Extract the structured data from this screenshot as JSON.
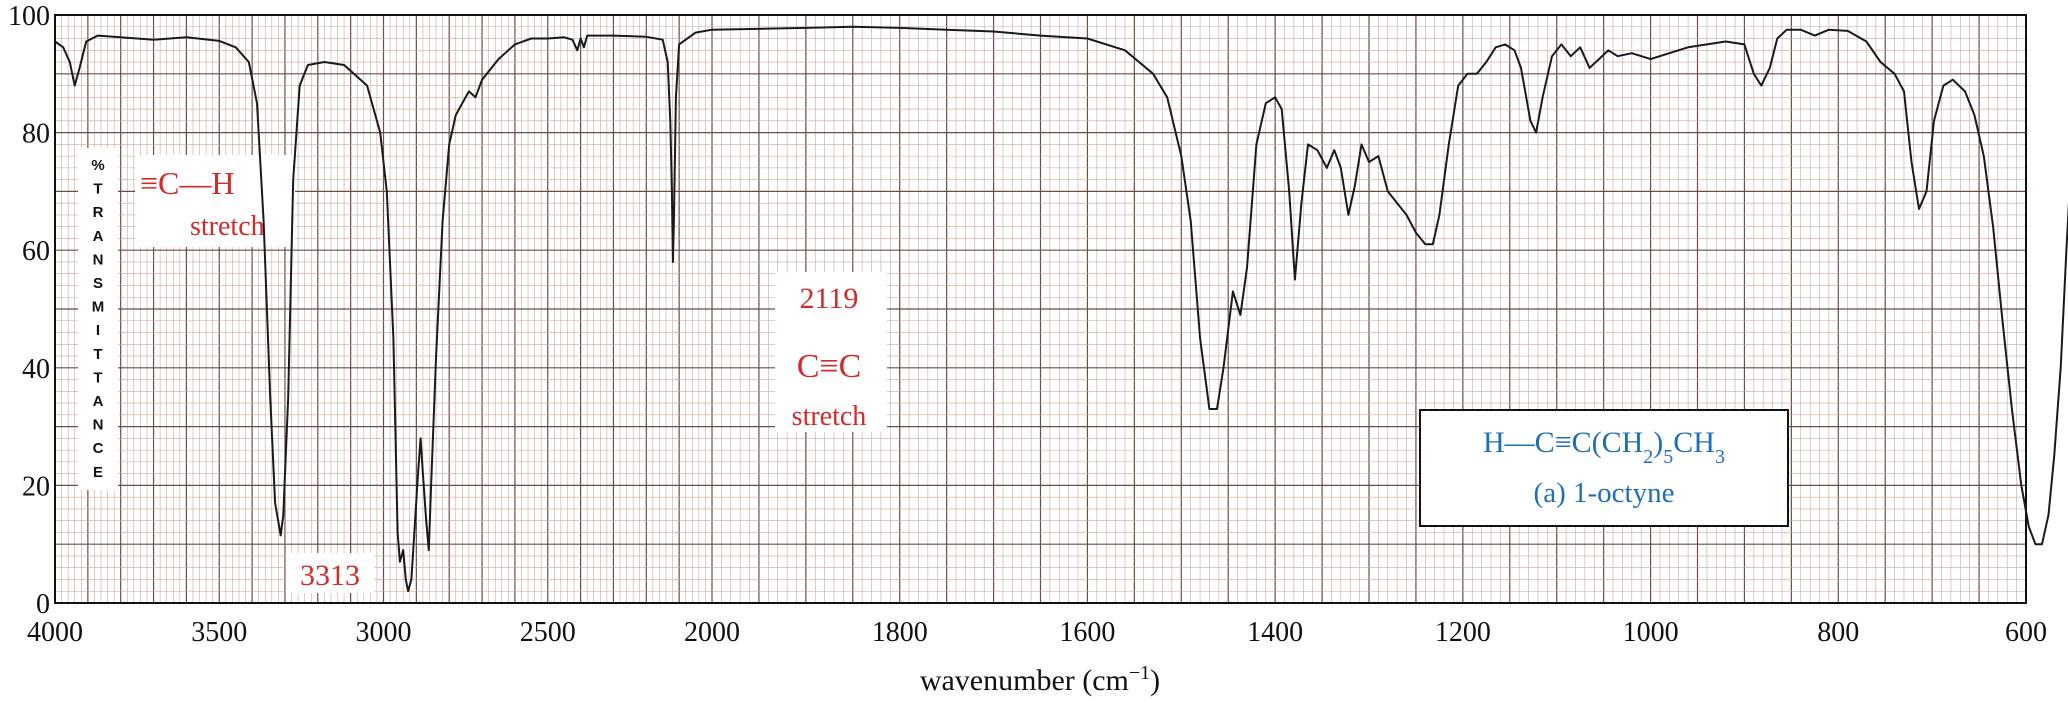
{
  "chart_data": {
    "type": "line",
    "xlabel": "wavenumber (cm",
    "xlabel_sup": "−1",
    "xlabel_close": ")",
    "ylabel_letters": [
      "%",
      "T",
      "R",
      "A",
      "N",
      "S",
      "M",
      "I",
      "T",
      "T",
      "A",
      "N",
      "C",
      "E"
    ],
    "x_ticks": [
      4000,
      3500,
      3000,
      2500,
      2000,
      1800,
      1600,
      1400,
      1200,
      1000,
      800,
      600
    ],
    "y_ticks": [
      0,
      20,
      40,
      60,
      80,
      100
    ],
    "xlim": [
      4000,
      600
    ],
    "ylim": [
      0,
      100
    ],
    "x_scale": "piecewise: 4000–2000 at half the scale of 2000–600",
    "grid": true,
    "colors": {
      "curve": "#1a1a1a",
      "grid_minor": "#c9a99a",
      "grid_major": "#6b4e44",
      "annotation": "#d42a2a",
      "compound": "#1f6fb8"
    },
    "series": [
      {
        "points": [
          [
            4000,
            95.5
          ],
          [
            3975,
            94.5
          ],
          [
            3955,
            92
          ],
          [
            3940,
            88
          ],
          [
            3925,
            91
          ],
          [
            3905,
            95.5
          ],
          [
            3870,
            96.5
          ],
          [
            3800,
            96.2
          ],
          [
            3700,
            95.8
          ],
          [
            3600,
            96.2
          ],
          [
            3500,
            95.6
          ],
          [
            3450,
            94.5
          ],
          [
            3410,
            92
          ],
          [
            3385,
            85
          ],
          [
            3365,
            65
          ],
          [
            3345,
            35
          ],
          [
            3330,
            17
          ],
          [
            3313,
            11.5
          ],
          [
            3305,
            15
          ],
          [
            3290,
            35
          ],
          [
            3275,
            72
          ],
          [
            3255,
            88
          ],
          [
            3230,
            91.5
          ],
          [
            3180,
            92
          ],
          [
            3120,
            91.5
          ],
          [
            3050,
            88
          ],
          [
            3010,
            80
          ],
          [
            2990,
            70
          ],
          [
            2970,
            45
          ],
          [
            2957,
            12
          ],
          [
            2950,
            7
          ],
          [
            2940,
            9
          ],
          [
            2932,
            4
          ],
          [
            2925,
            2
          ],
          [
            2915,
            4
          ],
          [
            2905,
            13
          ],
          [
            2895,
            22
          ],
          [
            2887,
            28
          ],
          [
            2880,
            22
          ],
          [
            2870,
            14
          ],
          [
            2862,
            9
          ],
          [
            2855,
            20
          ],
          [
            2840,
            42
          ],
          [
            2820,
            65
          ],
          [
            2800,
            78
          ],
          [
            2780,
            83
          ],
          [
            2760,
            85
          ],
          [
            2740,
            87
          ],
          [
            2720,
            86
          ],
          [
            2700,
            89
          ],
          [
            2650,
            92.5
          ],
          [
            2600,
            95
          ],
          [
            2550,
            96
          ],
          [
            2500,
            96
          ],
          [
            2450,
            96.2
          ],
          [
            2425,
            95.8
          ],
          [
            2410,
            94
          ],
          [
            2400,
            96
          ],
          [
            2390,
            94.5
          ],
          [
            2380,
            96.5
          ],
          [
            2350,
            96.5
          ],
          [
            2300,
            96.5
          ],
          [
            2200,
            96.3
          ],
          [
            2150,
            95.8
          ],
          [
            2135,
            92
          ],
          [
            2127,
            82
          ],
          [
            2122,
            70
          ],
          [
            2119,
            58
          ],
          [
            2116,
            65
          ],
          [
            2110,
            86
          ],
          [
            2100,
            95
          ],
          [
            2050,
            97
          ],
          [
            2000,
            97.5
          ],
          [
            1900,
            97.8
          ],
          [
            1850,
            98
          ],
          [
            1800,
            97.8
          ],
          [
            1750,
            97.5
          ],
          [
            1700,
            97.2
          ],
          [
            1650,
            96.5
          ],
          [
            1600,
            96
          ],
          [
            1560,
            94
          ],
          [
            1530,
            90
          ],
          [
            1515,
            86
          ],
          [
            1500,
            76
          ],
          [
            1490,
            65
          ],
          [
            1480,
            45
          ],
          [
            1470,
            33
          ],
          [
            1462,
            33
          ],
          [
            1455,
            40
          ],
          [
            1445,
            53
          ],
          [
            1437,
            49
          ],
          [
            1430,
            57
          ],
          [
            1420,
            78
          ],
          [
            1410,
            85
          ],
          [
            1400,
            86
          ],
          [
            1393,
            84
          ],
          [
            1385,
            70
          ],
          [
            1379,
            55
          ],
          [
            1372,
            68
          ],
          [
            1365,
            78
          ],
          [
            1355,
            77
          ],
          [
            1345,
            74
          ],
          [
            1337,
            77
          ],
          [
            1330,
            74
          ],
          [
            1322,
            66
          ],
          [
            1315,
            71
          ],
          [
            1308,
            78
          ],
          [
            1300,
            75
          ],
          [
            1290,
            76
          ],
          [
            1280,
            70
          ],
          [
            1270,
            68
          ],
          [
            1260,
            66
          ],
          [
            1250,
            63
          ],
          [
            1240,
            61
          ],
          [
            1232,
            61
          ],
          [
            1225,
            66
          ],
          [
            1215,
            78
          ],
          [
            1205,
            88
          ],
          [
            1195,
            90
          ],
          [
            1185,
            90
          ],
          [
            1175,
            92
          ],
          [
            1165,
            94.5
          ],
          [
            1155,
            95
          ],
          [
            1145,
            94
          ],
          [
            1138,
            91
          ],
          [
            1128,
            82
          ],
          [
            1122,
            80
          ],
          [
            1115,
            86
          ],
          [
            1105,
            93
          ],
          [
            1095,
            95
          ],
          [
            1085,
            93
          ],
          [
            1075,
            94.5
          ],
          [
            1065,
            91
          ],
          [
            1055,
            92.5
          ],
          [
            1045,
            94
          ],
          [
            1035,
            93
          ],
          [
            1020,
            93.5
          ],
          [
            1000,
            92.5
          ],
          [
            980,
            93.5
          ],
          [
            960,
            94.5
          ],
          [
            940,
            95
          ],
          [
            920,
            95.5
          ],
          [
            900,
            95
          ],
          [
            890,
            90
          ],
          [
            882,
            88
          ],
          [
            873,
            91
          ],
          [
            865,
            96
          ],
          [
            855,
            97.5
          ],
          [
            840,
            97.5
          ],
          [
            825,
            96.5
          ],
          [
            810,
            97.5
          ],
          [
            790,
            97.3
          ],
          [
            770,
            95.5
          ],
          [
            755,
            92
          ],
          [
            740,
            90
          ],
          [
            730,
            87
          ],
          [
            722,
            75
          ],
          [
            714,
            67
          ],
          [
            706,
            70
          ],
          [
            698,
            82
          ],
          [
            688,
            88
          ],
          [
            678,
            89
          ],
          [
            665,
            87
          ],
          [
            655,
            83
          ],
          [
            645,
            76
          ],
          [
            635,
            64
          ],
          [
            625,
            48
          ],
          [
            615,
            33
          ],
          [
            605,
            20
          ],
          [
            597,
            13
          ],
          [
            590,
            10
          ],
          [
            583,
            10
          ],
          [
            576,
            15
          ],
          [
            570,
            25
          ],
          [
            563,
            40
          ],
          [
            557,
            60
          ],
          [
            552,
            75
          ],
          [
            548,
            82
          ],
          [
            542,
            85
          ]
        ]
      }
    ],
    "annotations": {
      "ch_bond": "≡C—H",
      "ch_stretch": "stretch",
      "ch_peak": "3313",
      "cc_peak": "2119",
      "cc_bond": "C≡C",
      "cc_stretch": "stretch",
      "formula_prefix": "H—C≡C(CH",
      "formula_sub": "2",
      "formula_mid": ")",
      "formula_sub2": "5",
      "formula_suffix": "CH",
      "formula_sub3": "3",
      "compound_name": "(a) 1-octyne"
    }
  }
}
